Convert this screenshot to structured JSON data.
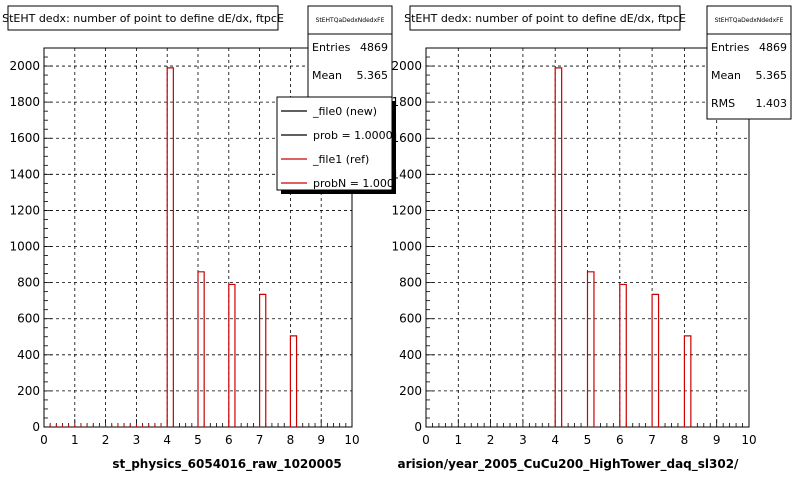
{
  "chart_data": [
    {
      "type": "bar",
      "title": "StEHT dedx: number of point to define dE/dx, ftpcE",
      "xlabel": "st_physics_6054016_raw_1020005",
      "ylabel": "",
      "xlim": [
        0,
        10
      ],
      "ylim": [
        0,
        2100
      ],
      "x_ticks": [
        "0",
        "1",
        "2",
        "3",
        "4",
        "5",
        "6",
        "7",
        "8",
        "9",
        "10"
      ],
      "y_ticks": [
        "0",
        "200",
        "400",
        "600",
        "800",
        "1000",
        "1200",
        "1400",
        "1600",
        "1800",
        "2000"
      ],
      "grid": true,
      "stats": {
        "header": "StEHTQaDedxNdedxFE",
        "rows": [
          {
            "label": "Entries",
            "value": "4869"
          },
          {
            "label": "Mean",
            "value": "5.365"
          }
        ]
      },
      "legend": [
        {
          "label": "_file0 (new)",
          "color": "#000000"
        },
        {
          "label": "prob = 1.000000",
          "color": "#000000"
        },
        {
          "label": "_file1 (ref)",
          "color": "#cc0000"
        },
        {
          "label": "probN = 1.000000",
          "color": "#cc0000"
        }
      ],
      "series": [
        {
          "color": "#cc0000",
          "bins": [
            [
              4.0,
              4.2,
              1990
            ],
            [
              5.0,
              5.2,
              860
            ],
            [
              6.0,
              6.2,
              790
            ],
            [
              7.0,
              7.2,
              735
            ],
            [
              8.0,
              8.2,
              505
            ]
          ]
        }
      ],
      "baseline_value": 14
    },
    {
      "type": "bar",
      "title": "StEHT dedx: number of point to define dE/dx, ftpcE",
      "xlabel": "arision/year_2005_CuCu200_HighTower_daq_sl302/",
      "ylabel": "",
      "xlim": [
        0,
        10
      ],
      "ylim": [
        0,
        2100
      ],
      "x_ticks": [
        "0",
        "1",
        "2",
        "3",
        "4",
        "5",
        "6",
        "7",
        "8",
        "9",
        "10"
      ],
      "y_ticks": [
        "0",
        "200",
        "400",
        "600",
        "800",
        "1000",
        "1200",
        "1400",
        "1600",
        "1800",
        "2000"
      ],
      "grid": true,
      "stats": {
        "header": "StEHTQaDedxNdedxFE",
        "rows": [
          {
            "label": "Entries",
            "value": "4869"
          },
          {
            "label": "Mean",
            "value": "5.365"
          },
          {
            "label": "RMS",
            "value": "1.403"
          }
        ]
      },
      "series": [
        {
          "color": "#cc0000",
          "bins": [
            [
              4.0,
              4.2,
              1990
            ],
            [
              5.0,
              5.2,
              860
            ],
            [
              6.0,
              6.2,
              790
            ],
            [
              7.0,
              7.2,
              735
            ],
            [
              8.0,
              8.2,
              505
            ]
          ]
        }
      ]
    }
  ]
}
